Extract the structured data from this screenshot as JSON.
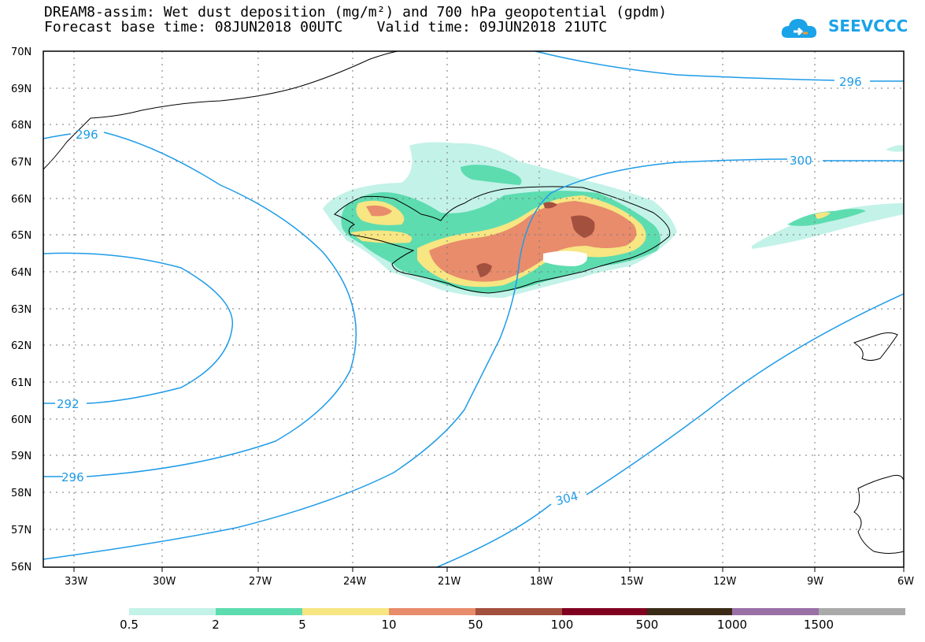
{
  "header": {
    "title_line1": "DREAM8-assim: Wet dust deposition (mg/m²) and 700 hPa geopotential (gpdm)",
    "title_line2": "Forecast base time: 08JUN2018 00UTC    Valid time: 09JUN2018 21UTC",
    "logo_text": "SEEVCCC",
    "logo_icon": "cloud-icon"
  },
  "map": {
    "lat_labels": [
      "70N",
      "69N",
      "68N",
      "67N",
      "66N",
      "65N",
      "64N",
      "63N",
      "62N",
      "61N",
      "60N",
      "59N",
      "58N",
      "57N",
      "56N"
    ],
    "lon_labels": [
      "33W",
      "30W",
      "27W",
      "24W",
      "21W",
      "18W",
      "15W",
      "12W",
      "9W",
      "6W"
    ],
    "contour_labels": [
      "296",
      "296",
      "300",
      "292",
      "296",
      "304"
    ],
    "contour_color": "#1e9be8"
  },
  "colorbar": {
    "labels": [
      "0.5",
      "2",
      "5",
      "10",
      "50",
      "100",
      "500",
      "1000",
      "1500"
    ],
    "colors": [
      "#c3f2e8",
      "#5ddcb0",
      "#f7e682",
      "#e88c6c",
      "#a4503f",
      "#800020",
      "#3a2a16",
      "#9a6fa6",
      "#aaaaaa"
    ]
  }
}
